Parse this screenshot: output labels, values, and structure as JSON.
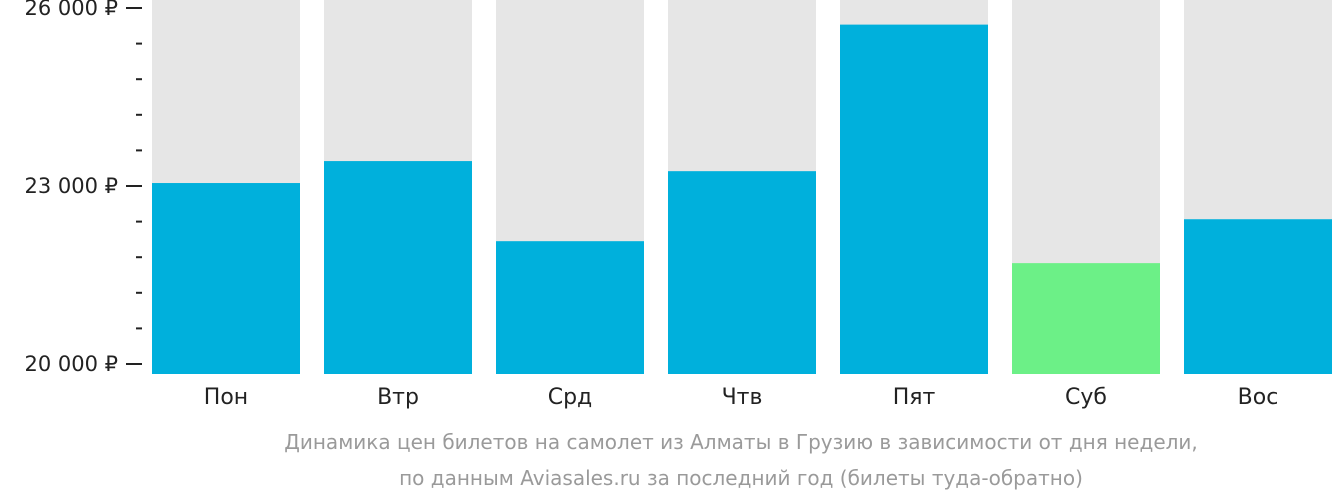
{
  "chart_data": {
    "type": "bar",
    "categories": [
      "Пон",
      "Втр",
      "Срд",
      "Чтв",
      "Пят",
      "Суб",
      "Вос"
    ],
    "values": [
      23050,
      23420,
      22070,
      23250,
      25720,
      21700,
      22440
    ],
    "highlight_index": 5,
    "ylim": [
      20000,
      26000
    ],
    "yticks": [
      {
        "value": 20000,
        "label": "20 000 ₽"
      },
      {
        "value": 23000,
        "label": "23 000 ₽"
      },
      {
        "value": 26000,
        "label": "26 000 ₽"
      }
    ],
    "minor_tick_step": 600,
    "colors": {
      "bar": "#00b0dc",
      "highlight": "#6cf087",
      "background_bar": "#e6e6e6",
      "axis": "#222222"
    }
  },
  "caption": {
    "line1": "Динамика цен билетов на самолет из Алматы в Грузию в зависимости от дня недели,",
    "line2": "по данным Aviasales.ru за последний год (билеты туда-обратно)"
  }
}
